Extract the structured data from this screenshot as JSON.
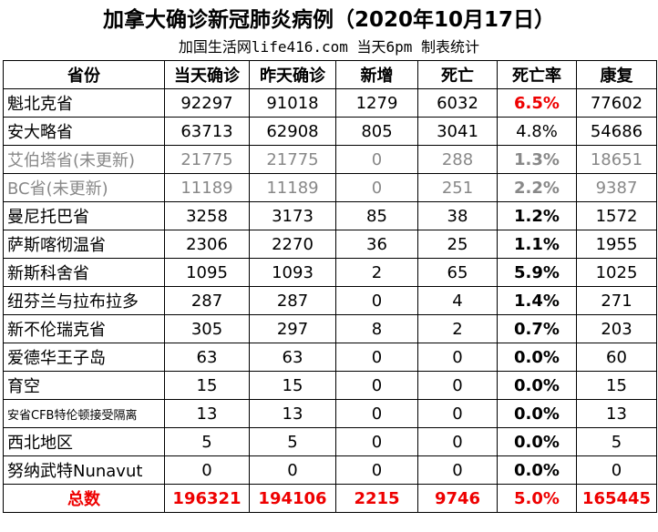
{
  "header": {
    "title": "加拿大确诊新冠肺炎病例（2020年10月17日）",
    "subtitle": "加国生活网life416.com 当天6pm 制表统计"
  },
  "table": {
    "columns": [
      "省份",
      "当天确诊",
      "昨天确诊",
      "新增",
      "死亡",
      "死亡率",
      "康复"
    ],
    "rows": [
      [
        "魁北克省",
        "92297",
        "91018",
        "1279",
        "6032",
        "6.5%",
        "77602"
      ],
      [
        "安大略省",
        "63713",
        "62908",
        "805",
        "3041",
        "4.8%",
        "54686"
      ],
      [
        "艾伯塔省(未更新)",
        "21775",
        "21775",
        "0",
        "288",
        "1.3%",
        "18651"
      ],
      [
        "BC省(未更新)",
        "11189",
        "11189",
        "0",
        "251",
        "2.2%",
        "9387"
      ],
      [
        "曼尼托巴省",
        "3258",
        "3173",
        "85",
        "38",
        "1.2%",
        "1572"
      ],
      [
        "萨斯喀彻温省",
        "2306",
        "2270",
        "36",
        "25",
        "1.1%",
        "1955"
      ],
      [
        "新斯科舍省",
        "1095",
        "1093",
        "2",
        "65",
        "5.9%",
        "1025"
      ],
      [
        "纽芬兰与拉布拉多",
        "287",
        "287",
        "0",
        "4",
        "1.4%",
        "271"
      ],
      [
        "新不伦瑞克省",
        "305",
        "297",
        "8",
        "2",
        "0.7%",
        "203"
      ],
      [
        "爱德华王子岛",
        "63",
        "63",
        "0",
        "0",
        "0.0%",
        "60"
      ],
      [
        "育空",
        "15",
        "15",
        "0",
        "0",
        "0.0%",
        "15"
      ],
      [
        "安省CFB特伦顿接受隔离",
        "13",
        "13",
        "0",
        "0",
        "0.0%",
        "13"
      ],
      [
        "西北地区",
        "5",
        "5",
        "0",
        "0",
        "0.0%",
        "5"
      ],
      [
        "努纳武特Nunavut",
        "0",
        "0",
        "0",
        "0",
        "0.0%",
        "0"
      ]
    ],
    "total": [
      "总数",
      "196321",
      "194106",
      "2215",
      "9746",
      "5.0%",
      "165445"
    ]
  }
}
